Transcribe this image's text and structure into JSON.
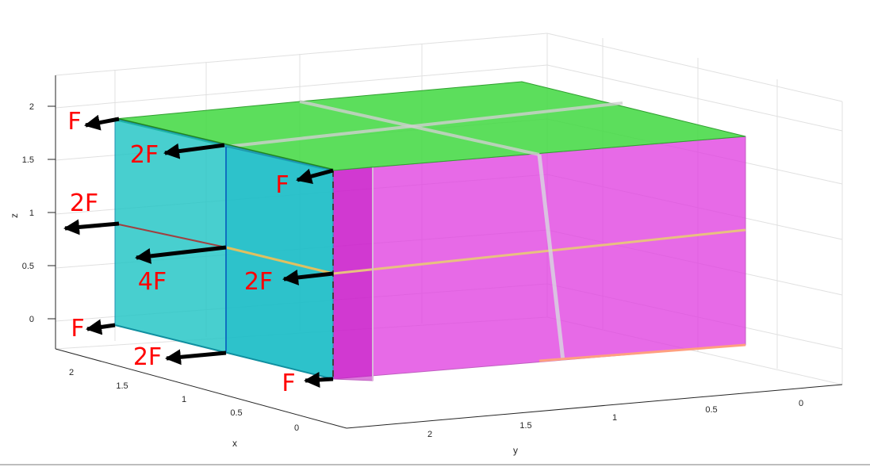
{
  "chart_data": {
    "type": "3d-block-diagram",
    "axes": {
      "x": {
        "label": "x",
        "ticks": [
          "0",
          "0.5",
          "1",
          "1.5",
          "2"
        ]
      },
      "y": {
        "label": "y",
        "ticks": [
          "0",
          "0.5",
          "1",
          "1.5",
          "2"
        ]
      },
      "z": {
        "label": "z",
        "ticks": [
          "0",
          "0.5",
          "1",
          "1.5",
          "2"
        ]
      }
    },
    "grid": true,
    "blocks": [
      {
        "name": "front block",
        "color": "#20c4c4"
      },
      {
        "name": "right block",
        "color": "#e040e0"
      },
      {
        "name": "top faces",
        "color": "#40d840"
      }
    ],
    "force_labels": [
      {
        "text": "F"
      },
      {
        "text": "2F"
      },
      {
        "text": "F"
      },
      {
        "text": "2F"
      },
      {
        "text": "4F"
      },
      {
        "text": "2F"
      },
      {
        "text": "F"
      },
      {
        "text": "2F"
      },
      {
        "text": "F"
      }
    ]
  }
}
